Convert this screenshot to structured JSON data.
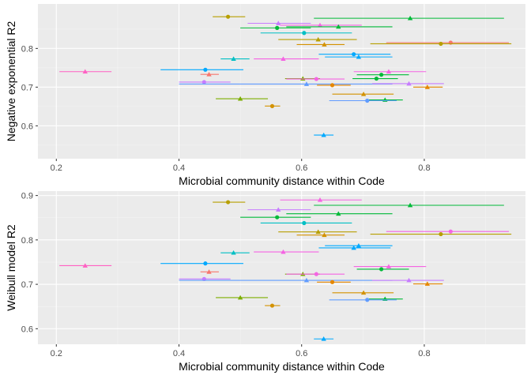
{
  "chart_data": [
    {
      "type": "scatter",
      "xlabel": "Microbial community distance within Code",
      "ylabel": "Negative exponential R2",
      "xlim": [
        0.17,
        0.965
      ],
      "ylim": [
        0.515,
        0.915
      ],
      "x_ticks": [
        "0.2",
        "0.4",
        "0.6",
        "0.8"
      ],
      "x_tick_values": [
        0.2,
        0.4,
        0.6,
        0.8
      ],
      "y_ticks": [
        "0.6",
        "0.7",
        "0.8"
      ],
      "y_tick_values": [
        0.6,
        0.7,
        0.8
      ],
      "grid": true,
      "points": [
        {
          "x": 0.48,
          "y": 0.882,
          "xmin": 0.455,
          "xmax": 0.508,
          "color": "#b79f00",
          "marker": "circle"
        },
        {
          "x": 0.562,
          "y": 0.865,
          "xmin": 0.512,
          "xmax": 0.615,
          "color": "#c77cff",
          "marker": "triangle"
        },
        {
          "x": 0.777,
          "y": 0.878,
          "xmin": 0.62,
          "xmax": 0.93,
          "color": "#00ba38",
          "marker": "triangle"
        },
        {
          "x": 0.63,
          "y": 0.86,
          "xmin": 0.565,
          "xmax": 0.698,
          "color": "#f564e3",
          "marker": "triangle"
        },
        {
          "x": 0.66,
          "y": 0.856,
          "xmin": 0.575,
          "xmax": 0.748,
          "color": "#00ba38",
          "marker": "triangle"
        },
        {
          "x": 0.56,
          "y": 0.853,
          "xmin": 0.5,
          "xmax": 0.615,
          "color": "#00ba38",
          "marker": "circle"
        },
        {
          "x": 0.604,
          "y": 0.84,
          "xmin": 0.533,
          "xmax": 0.682,
          "color": "#00bfc4",
          "marker": "circle"
        },
        {
          "x": 0.627,
          "y": 0.823,
          "xmin": 0.562,
          "xmax": 0.69,
          "color": "#b79f00",
          "marker": "triangle"
        },
        {
          "x": 0.843,
          "y": 0.815,
          "xmin": 0.738,
          "xmax": 0.938,
          "color": "#f8766d",
          "marker": "circle"
        },
        {
          "x": 0.827,
          "y": 0.812,
          "xmin": 0.712,
          "xmax": 0.942,
          "color": "#b79f00",
          "marker": "circle"
        },
        {
          "x": 0.637,
          "y": 0.81,
          "xmin": 0.592,
          "xmax": 0.67,
          "color": "#d39200",
          "marker": "triangle"
        },
        {
          "x": 0.685,
          "y": 0.785,
          "xmin": 0.628,
          "xmax": 0.745,
          "color": "#00a9ff",
          "marker": "circle"
        },
        {
          "x": 0.693,
          "y": 0.778,
          "xmin": 0.638,
          "xmax": 0.748,
          "color": "#00a9ff",
          "marker": "triangle"
        },
        {
          "x": 0.489,
          "y": 0.773,
          "xmin": 0.468,
          "xmax": 0.515,
          "color": "#00bfc4",
          "marker": "triangle"
        },
        {
          "x": 0.57,
          "y": 0.773,
          "xmin": 0.522,
          "xmax": 0.628,
          "color": "#f564e3",
          "marker": "triangle"
        },
        {
          "x": 0.443,
          "y": 0.745,
          "xmin": 0.37,
          "xmax": 0.505,
          "color": "#00a9ff",
          "marker": "circle"
        },
        {
          "x": 0.247,
          "y": 0.74,
          "xmin": 0.205,
          "xmax": 0.29,
          "color": "#ff61c3",
          "marker": "triangle"
        },
        {
          "x": 0.742,
          "y": 0.74,
          "xmin": 0.685,
          "xmax": 0.803,
          "color": "#f564e3",
          "marker": "triangle"
        },
        {
          "x": 0.449,
          "y": 0.733,
          "xmin": 0.435,
          "xmax": 0.465,
          "color": "#f8766d",
          "marker": "triangle"
        },
        {
          "x": 0.73,
          "y": 0.732,
          "xmin": 0.69,
          "xmax": 0.775,
          "color": "#00ba38",
          "marker": "circle"
        },
        {
          "x": 0.722,
          "y": 0.722,
          "xmin": 0.683,
          "xmax": 0.757,
          "color": "#00ba38",
          "marker": "circle"
        },
        {
          "x": 0.602,
          "y": 0.722,
          "xmin": 0.573,
          "xmax": 0.63,
          "color": "#7cae00",
          "marker": "triangle"
        },
        {
          "x": 0.624,
          "y": 0.721,
          "xmin": 0.575,
          "xmax": 0.67,
          "color": "#f564e3",
          "marker": "circle"
        },
        {
          "x": 0.441,
          "y": 0.713,
          "xmin": 0.4,
          "xmax": 0.484,
          "color": "#c77cff",
          "marker": "circle"
        },
        {
          "x": 0.608,
          "y": 0.708,
          "xmin": 0.4,
          "xmax": 0.748,
          "color": "#619cff",
          "marker": "triangle"
        },
        {
          "x": 0.775,
          "y": 0.709,
          "xmin": 0.715,
          "xmax": 0.832,
          "color": "#c77cff",
          "marker": "triangle"
        },
        {
          "x": 0.65,
          "y": 0.705,
          "xmin": 0.625,
          "xmax": 0.68,
          "color": "#e58700",
          "marker": "circle"
        },
        {
          "x": 0.805,
          "y": 0.7,
          "xmin": 0.782,
          "xmax": 0.83,
          "color": "#e58700",
          "marker": "triangle"
        },
        {
          "x": 0.5,
          "y": 0.67,
          "xmin": 0.46,
          "xmax": 0.545,
          "color": "#7cae00",
          "marker": "triangle"
        },
        {
          "x": 0.701,
          "y": 0.682,
          "xmin": 0.65,
          "xmax": 0.75,
          "color": "#d39200",
          "marker": "triangle"
        },
        {
          "x": 0.736,
          "y": 0.667,
          "xmin": 0.705,
          "xmax": 0.765,
          "color": "#00ba38",
          "marker": "triangle"
        },
        {
          "x": 0.707,
          "y": 0.665,
          "xmin": 0.645,
          "xmax": 0.755,
          "color": "#619cff",
          "marker": "circle"
        },
        {
          "x": 0.552,
          "y": 0.651,
          "xmin": 0.54,
          "xmax": 0.565,
          "color": "#d39200",
          "marker": "circle"
        },
        {
          "x": 0.636,
          "y": 0.576,
          "xmin": 0.62,
          "xmax": 0.652,
          "color": "#00a9ff",
          "marker": "triangle"
        }
      ]
    },
    {
      "type": "scatter",
      "xlabel": "Microbial community distance within Code",
      "ylabel": "Weibull model R2",
      "xlim": [
        0.17,
        0.965
      ],
      "ylim": [
        0.565,
        0.91
      ],
      "x_ticks": [
        "0.2",
        "0.4",
        "0.6",
        "0.8"
      ],
      "x_tick_values": [
        0.2,
        0.4,
        0.6,
        0.8
      ],
      "y_ticks": [
        "0.6",
        "0.7",
        "0.8",
        "0.9"
      ],
      "y_tick_values": [
        0.6,
        0.7,
        0.8,
        0.9
      ],
      "grid": true,
      "points": [
        {
          "x": 0.63,
          "y": 0.89,
          "xmin": 0.565,
          "xmax": 0.698,
          "color": "#f564e3",
          "marker": "triangle"
        },
        {
          "x": 0.48,
          "y": 0.885,
          "xmin": 0.455,
          "xmax": 0.508,
          "color": "#b79f00",
          "marker": "circle"
        },
        {
          "x": 0.777,
          "y": 0.878,
          "xmin": 0.62,
          "xmax": 0.93,
          "color": "#00ba38",
          "marker": "triangle"
        },
        {
          "x": 0.562,
          "y": 0.868,
          "xmin": 0.512,
          "xmax": 0.615,
          "color": "#c77cff",
          "marker": "triangle"
        },
        {
          "x": 0.66,
          "y": 0.859,
          "xmin": 0.575,
          "xmax": 0.748,
          "color": "#00ba38",
          "marker": "triangle"
        },
        {
          "x": 0.56,
          "y": 0.851,
          "xmin": 0.5,
          "xmax": 0.615,
          "color": "#00ba38",
          "marker": "circle"
        },
        {
          "x": 0.604,
          "y": 0.838,
          "xmin": 0.533,
          "xmax": 0.682,
          "color": "#00bfc4",
          "marker": "circle"
        },
        {
          "x": 0.843,
          "y": 0.819,
          "xmin": 0.738,
          "xmax": 0.938,
          "color": "#f564e3",
          "marker": "circle"
        },
        {
          "x": 0.627,
          "y": 0.818,
          "xmin": 0.562,
          "xmax": 0.69,
          "color": "#b79f00",
          "marker": "triangle"
        },
        {
          "x": 0.827,
          "y": 0.813,
          "xmin": 0.712,
          "xmax": 0.942,
          "color": "#b79f00",
          "marker": "circle"
        },
        {
          "x": 0.637,
          "y": 0.811,
          "xmin": 0.592,
          "xmax": 0.67,
          "color": "#d39200",
          "marker": "triangle"
        },
        {
          "x": 0.693,
          "y": 0.787,
          "xmin": 0.638,
          "xmax": 0.748,
          "color": "#00a9ff",
          "marker": "triangle"
        },
        {
          "x": 0.685,
          "y": 0.782,
          "xmin": 0.628,
          "xmax": 0.745,
          "color": "#00a9ff",
          "marker": "triangle"
        },
        {
          "x": 0.57,
          "y": 0.773,
          "xmin": 0.522,
          "xmax": 0.628,
          "color": "#f564e3",
          "marker": "triangle"
        },
        {
          "x": 0.489,
          "y": 0.771,
          "xmin": 0.468,
          "xmax": 0.515,
          "color": "#00bfc4",
          "marker": "triangle"
        },
        {
          "x": 0.443,
          "y": 0.747,
          "xmin": 0.37,
          "xmax": 0.505,
          "color": "#00a9ff",
          "marker": "circle"
        },
        {
          "x": 0.247,
          "y": 0.742,
          "xmin": 0.205,
          "xmax": 0.29,
          "color": "#ff61c3",
          "marker": "triangle"
        },
        {
          "x": 0.742,
          "y": 0.74,
          "xmin": 0.685,
          "xmax": 0.803,
          "color": "#f564e3",
          "marker": "triangle"
        },
        {
          "x": 0.73,
          "y": 0.734,
          "xmin": 0.69,
          "xmax": 0.775,
          "color": "#00ba38",
          "marker": "circle"
        },
        {
          "x": 0.449,
          "y": 0.728,
          "xmin": 0.435,
          "xmax": 0.465,
          "color": "#f8766d",
          "marker": "triangle"
        },
        {
          "x": 0.602,
          "y": 0.723,
          "xmin": 0.573,
          "xmax": 0.63,
          "color": "#7cae00",
          "marker": "triangle"
        },
        {
          "x": 0.624,
          "y": 0.723,
          "xmin": 0.575,
          "xmax": 0.67,
          "color": "#f564e3",
          "marker": "circle"
        },
        {
          "x": 0.441,
          "y": 0.712,
          "xmin": 0.4,
          "xmax": 0.484,
          "color": "#c77cff",
          "marker": "circle"
        },
        {
          "x": 0.608,
          "y": 0.709,
          "xmin": 0.4,
          "xmax": 0.748,
          "color": "#619cff",
          "marker": "triangle"
        },
        {
          "x": 0.775,
          "y": 0.709,
          "xmin": 0.715,
          "xmax": 0.832,
          "color": "#c77cff",
          "marker": "triangle"
        },
        {
          "x": 0.65,
          "y": 0.705,
          "xmin": 0.625,
          "xmax": 0.68,
          "color": "#e58700",
          "marker": "circle"
        },
        {
          "x": 0.805,
          "y": 0.701,
          "xmin": 0.782,
          "xmax": 0.83,
          "color": "#e58700",
          "marker": "triangle"
        },
        {
          "x": 0.701,
          "y": 0.681,
          "xmin": 0.65,
          "xmax": 0.75,
          "color": "#d39200",
          "marker": "triangle"
        },
        {
          "x": 0.5,
          "y": 0.67,
          "xmin": 0.46,
          "xmax": 0.545,
          "color": "#7cae00",
          "marker": "triangle"
        },
        {
          "x": 0.736,
          "y": 0.667,
          "xmin": 0.705,
          "xmax": 0.765,
          "color": "#00ba38",
          "marker": "triangle"
        },
        {
          "x": 0.707,
          "y": 0.665,
          "xmin": 0.645,
          "xmax": 0.755,
          "color": "#619cff",
          "marker": "circle"
        },
        {
          "x": 0.552,
          "y": 0.652,
          "xmin": 0.54,
          "xmax": 0.565,
          "color": "#d39200",
          "marker": "circle"
        },
        {
          "x": 0.636,
          "y": 0.577,
          "xmin": 0.62,
          "xmax": 0.652,
          "color": "#00a9ff",
          "marker": "triangle"
        }
      ]
    }
  ],
  "style": {
    "panel_background": "#ebebeb",
    "grid_major": "#ffffff",
    "grid_minor": "#f5f5f5"
  }
}
